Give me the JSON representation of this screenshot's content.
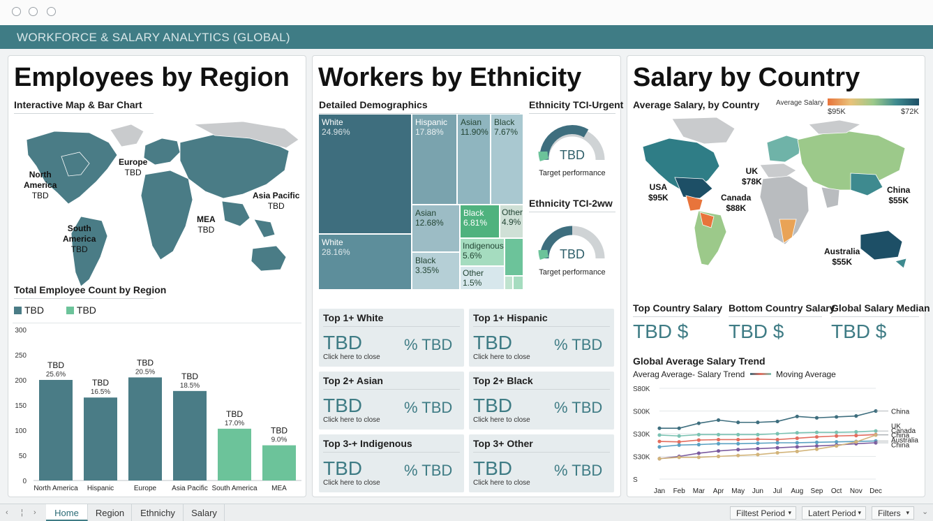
{
  "header": {
    "title": "WORKFORCE & SALARY ANALYTICS (GLOBAL)"
  },
  "panels": {
    "region": {
      "title": "Employees by Region",
      "map_subtitle": "Interactive Map & Bar Chart",
      "map_labels": [
        {
          "name": "North\nAmerica",
          "value": "TBD"
        },
        {
          "name": "Europe",
          "value": "TBD"
        },
        {
          "name": "Asia Pacific",
          "value": "TBD"
        },
        {
          "name": "MEA",
          "value": "TBD"
        },
        {
          "name": "South\nAmerica",
          "value": "TBD"
        }
      ],
      "bar_subtitle": "Total Employee Count by Region",
      "legend": [
        "TBD",
        "TBD"
      ]
    },
    "ethnicity": {
      "title": "Workers by Ethnicity",
      "treemap_subtitle": "Detailed Demographics",
      "treemap": [
        {
          "label": "White",
          "pct": "24.96%"
        },
        {
          "label": "White",
          "pct": "28.16%"
        },
        {
          "label": "Hispanic",
          "pct": "17.88%"
        },
        {
          "label": "Asian",
          "pct": "11.90%"
        },
        {
          "label": "Black",
          "pct": "7.67%"
        },
        {
          "label": "Asian",
          "pct": "12.68%"
        },
        {
          "label": "Black",
          "pct": "6.81%"
        },
        {
          "label": "Other",
          "pct": "4.9%"
        },
        {
          "label": "Indigenous",
          "pct": "5.6%"
        },
        {
          "label": "Black",
          "pct": "3.35%"
        },
        {
          "label": "Other",
          "pct": "1.5%"
        }
      ],
      "gauges": [
        {
          "title": "Ethnicity TCI-Urgent",
          "value": "TBD",
          "caption": "Target performance"
        },
        {
          "title": "Ethnicity TCI-2ww",
          "value": "TBD",
          "caption": "Target performance"
        }
      ],
      "cards": [
        {
          "title": "Top 1+ White",
          "value": "TBD",
          "pct": "% TBD",
          "hint": "Click here to close"
        },
        {
          "title": "Top 1+ Hispanic",
          "value": "TBD",
          "pct": "% TBD",
          "hint": "Click here to close"
        },
        {
          "title": "Top 2+ Asian",
          "value": "TBD",
          "pct": "% TBD",
          "hint": "Click here to close"
        },
        {
          "title": "Top 2+ Black",
          "value": "TBD",
          "pct": "% TBD",
          "hint": "Click here to close"
        },
        {
          "title": "Top 3-+ Indigenous",
          "value": "TBD",
          "pct": "% TBD",
          "hint": "Click here to close"
        },
        {
          "title": "Top 3+ Other",
          "value": "TBD",
          "pct": "% TBD",
          "hint": "Click here to close"
        }
      ]
    },
    "salary": {
      "title": "Salary by Country",
      "map_subtitle": "Average Salary, by Country",
      "scale_title": "Average Salary",
      "scale_min": "$95K",
      "scale_max": "$72K",
      "map_labels": [
        {
          "name": "USA",
          "value": "$95K"
        },
        {
          "name": "UK",
          "value": "$78K"
        },
        {
          "name": "Canada",
          "value": "$88K"
        },
        {
          "name": "China",
          "value": "$55K"
        },
        {
          "name": "Australia",
          "value": "$55K"
        }
      ],
      "kpis": [
        {
          "title": "Top Country Salary",
          "value": "TBD $"
        },
        {
          "title": "Bottom Country Salary",
          "value": "TBD $"
        },
        {
          "title": "Global Salary Median",
          "value": "TBD $"
        }
      ],
      "trend_title": "Global Average Salary Trend",
      "trend_legend_a": "Averag Average- Salary Trend",
      "trend_legend_b": "Moving Average"
    }
  },
  "tabs": [
    "Home",
    "Region",
    "Ethnichy",
    "Salary"
  ],
  "filters": [
    "Filtest Period",
    "Latert Period",
    "Filters"
  ],
  "colors": {
    "teal_dark": "#3f7c85",
    "bar_dark": "#4a7c86",
    "bar_green": "#6cc39a"
  },
  "chart_data": [
    {
      "type": "bar",
      "categories": [
        "North America",
        "Hispanic",
        "Europe",
        "Asia Pacific",
        "South America",
        "MEA"
      ],
      "values": [
        200,
        165,
        205,
        178,
        103,
        70
      ],
      "value_labels": [
        "TBD",
        "TBD",
        "TBD",
        "TBD",
        "TBD",
        "TBD"
      ],
      "pct_labels": [
        "25.6%",
        "16.5%",
        "20.5%",
        "18.5%",
        "17.0%",
        "9.0%"
      ],
      "series_colors": [
        "#4a7c86",
        "#4a7c86",
        "#4a7c86",
        "#4a7c86",
        "#6cc39a",
        "#6cc39a"
      ],
      "yticks": [
        "0",
        "50",
        "100",
        "150",
        "200",
        "250",
        "300"
      ],
      "ylim": [
        0,
        300
      ],
      "grid": false
    },
    {
      "type": "line",
      "x": [
        "Jan",
        "Feb",
        "Mar",
        "Apr",
        "May",
        "Jun",
        "Jul",
        "Aug",
        "Sep",
        "Oct",
        "Nov",
        "Dec"
      ],
      "yticks": [
        "S",
        "S30K",
        "S30K",
        "S00K",
        "S80K"
      ],
      "ylim": [
        0,
        4
      ],
      "series": [
        {
          "name": "China",
          "color": "#3e6e7e",
          "values": [
            2.24,
            2.24,
            2.46,
            2.6,
            2.5,
            2.5,
            2.54,
            2.76,
            2.7,
            2.74,
            2.78,
            3.0
          ]
        },
        {
          "name": "UK",
          "color": "#7ac2b2",
          "values": [
            1.94,
            1.9,
            1.96,
            1.96,
            1.96,
            1.96,
            2.0,
            2.04,
            2.06,
            2.06,
            2.08,
            2.12
          ]
        },
        {
          "name": "Canada",
          "color": "#e36d5e",
          "values": [
            1.66,
            1.64,
            1.72,
            1.74,
            1.74,
            1.76,
            1.74,
            1.8,
            1.86,
            1.9,
            1.92,
            1.96
          ]
        },
        {
          "name": "China",
          "color": "#5aa1c2",
          "values": [
            1.42,
            1.5,
            1.52,
            1.56,
            1.56,
            1.58,
            1.6,
            1.6,
            1.62,
            1.64,
            1.66,
            1.68
          ]
        },
        {
          "name": "Australia",
          "color": "#7a5a9e",
          "values": [
            0.9,
            1.0,
            1.14,
            1.24,
            1.3,
            1.34,
            1.38,
            1.42,
            1.46,
            1.5,
            1.56,
            1.6
          ]
        },
        {
          "name": "China",
          "color": "#d2b47a",
          "values": [
            0.9,
            0.96,
            0.96,
            1.0,
            1.04,
            1.08,
            1.16,
            1.22,
            1.32,
            1.46,
            1.64,
            1.94
          ]
        }
      ]
    }
  ]
}
